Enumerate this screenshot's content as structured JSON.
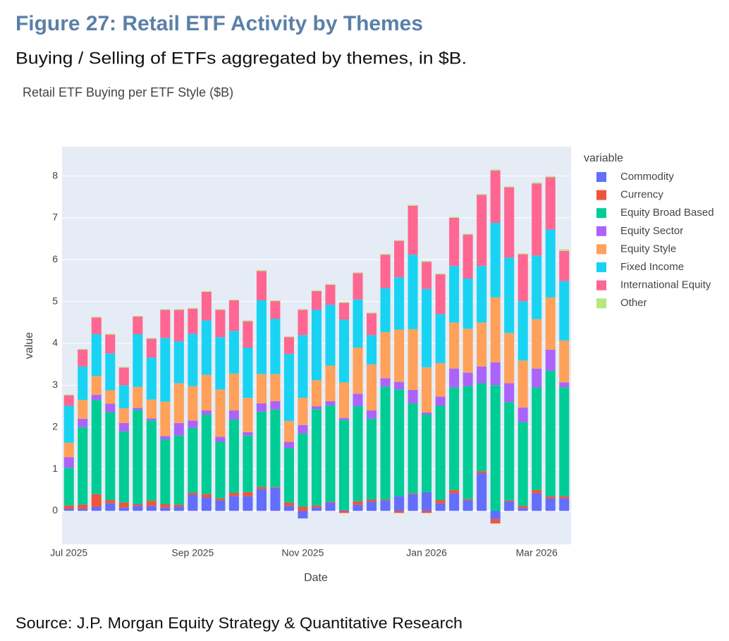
{
  "header": {
    "figure_title": "Figure 27: Retail ETF Activity by Themes",
    "subtitle": "Buying / Selling of ETFs aggregated by themes, in $B."
  },
  "chart_data": {
    "type": "stacked_bar",
    "title": "Retail ETF Buying per ETF Style ($B)",
    "xlabel": "Date",
    "ylabel": "value",
    "legend_title": "variable",
    "legend": "right",
    "grid": true,
    "categories": [
      "Jul 2025",
      null,
      null,
      null,
      null,
      null,
      null,
      null,
      null,
      "Sep 2025",
      null,
      null,
      null,
      null,
      null,
      null,
      null,
      "Nov 2025",
      null,
      null,
      null,
      null,
      null,
      null,
      null,
      null,
      "Jan 2026",
      null,
      null,
      null,
      null,
      null,
      null,
      null,
      "Mar 2026",
      null,
      null
    ],
    "ylim": [
      -0.8,
      8.7
    ],
    "yticks": [
      0,
      1,
      2,
      3,
      4,
      5,
      6,
      7,
      8
    ],
    "series": [
      {
        "name": "Commodity",
        "color": "#636efa",
        "values": [
          0.05,
          0.05,
          0.1,
          0.18,
          0.08,
          0.12,
          0.12,
          0.08,
          0.1,
          0.38,
          0.32,
          0.25,
          0.35,
          0.35,
          0.52,
          0.55,
          0.12,
          -0.18,
          0.08,
          0.2,
          0.02,
          0.15,
          0.22,
          0.25,
          0.35,
          0.4,
          0.45,
          0.18,
          0.42,
          0.25,
          0.9,
          -0.2,
          0.22,
          0.07,
          0.42,
          0.3,
          0.3
        ]
      },
      {
        "name": "Currency",
        "color": "#ef553b",
        "values": [
          0.08,
          0.1,
          0.3,
          0.08,
          0.12,
          0.04,
          0.12,
          0.08,
          0.05,
          0.05,
          0.08,
          0.05,
          0.08,
          0.1,
          0.05,
          0.02,
          0.08,
          0.1,
          0.05,
          0.02,
          -0.05,
          0.08,
          0.05,
          0.02,
          -0.05,
          0.02,
          -0.05,
          0.08,
          0.08,
          0.03,
          0.05,
          -0.1,
          0.03,
          0.05,
          0.08,
          0.05,
          0.05
        ]
      },
      {
        "name": "Equity Broad Based",
        "color": "#00cc96",
        "values": [
          0.9,
          1.85,
          2.25,
          2.1,
          1.7,
          2.25,
          1.92,
          1.55,
          1.65,
          1.55,
          1.9,
          1.35,
          1.75,
          1.35,
          1.8,
          1.85,
          1.3,
          1.75,
          2.3,
          2.3,
          2.15,
          2.27,
          1.93,
          2.7,
          2.55,
          2.15,
          1.85,
          2.25,
          2.45,
          2.7,
          2.1,
          3.0,
          2.35,
          2.0,
          2.45,
          3.0,
          2.6
        ]
      },
      {
        "name": "Equity Sector",
        "color": "#ab63fa",
        "values": [
          0.25,
          0.2,
          0.12,
          0.2,
          0.2,
          0.05,
          0.05,
          0.08,
          0.3,
          0.18,
          0.1,
          0.12,
          0.22,
          0.08,
          0.2,
          0.2,
          0.15,
          0.2,
          0.07,
          0.1,
          0.05,
          0.3,
          0.2,
          0.2,
          0.18,
          0.32,
          0.05,
          0.22,
          0.45,
          0.32,
          0.4,
          0.55,
          0.45,
          0.35,
          0.45,
          0.5,
          0.12
        ]
      },
      {
        "name": "Equity Style",
        "color": "#ffa15a",
        "values": [
          0.35,
          0.45,
          0.45,
          0.32,
          0.35,
          0.5,
          0.45,
          0.82,
          0.95,
          0.82,
          0.85,
          1.13,
          0.88,
          0.82,
          0.7,
          0.65,
          0.5,
          0.65,
          0.62,
          0.85,
          0.85,
          1.1,
          1.1,
          1.1,
          1.25,
          1.45,
          1.08,
          0.8,
          1.1,
          1.05,
          1.05,
          1.55,
          1.2,
          1.12,
          1.18,
          1.25,
          1.0
        ]
      },
      {
        "name": "Fixed Income",
        "color": "#19d3f3",
        "values": [
          0.88,
          0.8,
          1.0,
          0.88,
          0.55,
          1.26,
          1.0,
          1.52,
          1.0,
          1.25,
          1.3,
          1.25,
          1.02,
          1.2,
          1.76,
          1.32,
          1.6,
          1.5,
          1.68,
          1.45,
          1.5,
          1.15,
          0.7,
          1.05,
          1.25,
          1.78,
          1.87,
          1.17,
          1.35,
          1.2,
          1.35,
          1.78,
          1.8,
          1.42,
          1.52,
          1.62,
          1.42
        ]
      },
      {
        "name": "International Equity",
        "color": "#ff6692",
        "values": [
          0.25,
          0.4,
          0.4,
          0.45,
          0.42,
          0.42,
          0.45,
          0.67,
          0.75,
          0.6,
          0.68,
          0.65,
          0.73,
          0.63,
          0.7,
          0.42,
          0.4,
          0.6,
          0.45,
          0.48,
          0.4,
          0.63,
          0.52,
          0.8,
          0.87,
          1.17,
          0.65,
          0.95,
          1.15,
          1.05,
          1.7,
          1.25,
          1.68,
          1.12,
          1.72,
          1.25,
          0.72
        ]
      },
      {
        "name": "Other",
        "color": "#b6e880",
        "values": [
          0.02,
          0.02,
          0.02,
          0.02,
          0.02,
          0.02,
          0.02,
          0.02,
          0.02,
          0.02,
          0.02,
          0.02,
          0.02,
          0.02,
          0.02,
          0.02,
          0.02,
          0.02,
          0.02,
          0.02,
          0.02,
          0.02,
          0.02,
          0.02,
          0.02,
          0.02,
          0.02,
          0.02,
          0.02,
          0.02,
          0.02,
          0.03,
          0.02,
          0.02,
          0.03,
          0.03,
          0.04
        ]
      }
    ]
  },
  "footer": {
    "source": "Source: J.P. Morgan Equity Strategy & Quantitative Research"
  }
}
